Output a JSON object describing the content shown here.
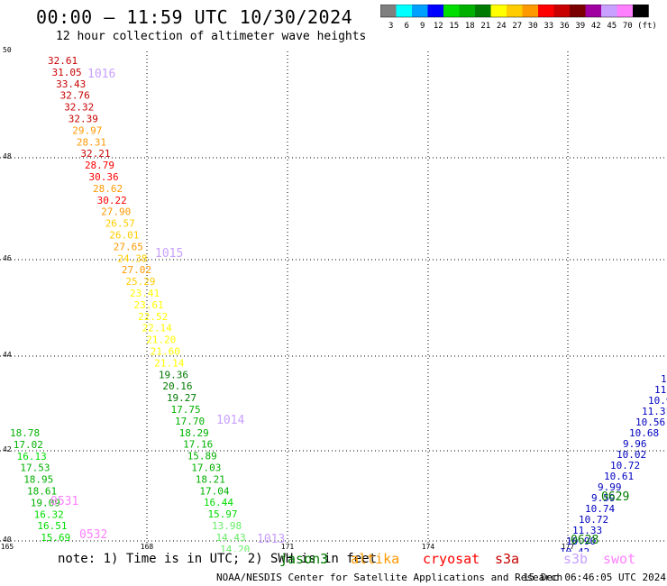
{
  "header": {
    "title": "00:00 – 11:59 UTC 10/30/2024",
    "subtitle": "12 hour collection of altimeter wave heights"
  },
  "color_scale": {
    "unit_label": "(ft)",
    "bins": [
      {
        "label": "3",
        "color": "#7f7f7f"
      },
      {
        "label": "6",
        "color": "#00ffff"
      },
      {
        "label": "9",
        "color": "#00a0ff"
      },
      {
        "label": "12",
        "color": "#0000ff"
      },
      {
        "label": "15",
        "color": "#00dd00"
      },
      {
        "label": "18",
        "color": "#00b000"
      },
      {
        "label": "21",
        "color": "#007a00"
      },
      {
        "label": "24",
        "color": "#ffff00"
      },
      {
        "label": "27",
        "color": "#ffcc00"
      },
      {
        "label": "30",
        "color": "#ff9900"
      },
      {
        "label": "33",
        "color": "#ff0000"
      },
      {
        "label": "36",
        "color": "#c80000"
      },
      {
        "label": "39",
        "color": "#7a0000"
      },
      {
        "label": "42",
        "color": "#a000a0"
      },
      {
        "label": "45",
        "color": "#c8a0ff"
      },
      {
        "label": "70",
        "color": "#ff80ff"
      },
      {
        "label": "",
        "color": "#000000"
      }
    ]
  },
  "map": {
    "lat_labels": [
      "50",
      "48",
      "46",
      "44",
      "42",
      "40"
    ],
    "lon_labels": [
      "165",
      "168",
      "171",
      "174",
      "177"
    ],
    "tracks": [
      {
        "color_group": "west",
        "values": [
          {
            "v": "32.61",
            "c": "#c80000"
          },
          {
            "v": "31.05",
            "c": "#c80000"
          },
          {
            "v": "33.43",
            "c": "#c80000"
          },
          {
            "v": "32.76",
            "c": "#c80000"
          },
          {
            "v": "32.32",
            "c": "#c80000"
          },
          {
            "v": "32.39",
            "c": "#c80000"
          },
          {
            "v": "29.97",
            "c": "#ff9900"
          },
          {
            "v": "28.31",
            "c": "#ff9900"
          },
          {
            "v": "32.21",
            "c": "#c80000"
          },
          {
            "v": "28.79",
            "c": "#ff0000"
          },
          {
            "v": "30.36",
            "c": "#ff0000"
          },
          {
            "v": "28.62",
            "c": "#ff9900"
          },
          {
            "v": "30.22",
            "c": "#ff0000"
          },
          {
            "v": "27.90",
            "c": "#ff9900"
          },
          {
            "v": "26.57",
            "c": "#ffcc00"
          },
          {
            "v": "26.01",
            "c": "#ffcc00"
          },
          {
            "v": "27.65",
            "c": "#ff9900"
          },
          {
            "v": "24.38",
            "c": "#ffcc00"
          },
          {
            "v": "27.02",
            "c": "#ff9900"
          },
          {
            "v": "25.29",
            "c": "#ffcc00"
          },
          {
            "v": "23.41",
            "c": "#ffff00"
          },
          {
            "v": "23.61",
            "c": "#ffff00"
          },
          {
            "v": "22.52",
            "c": "#ffff00"
          },
          {
            "v": "22.14",
            "c": "#ffff00"
          },
          {
            "v": "21.20",
            "c": "#ffff00"
          },
          {
            "v": "21.60",
            "c": "#ffff00"
          },
          {
            "v": "21.14",
            "c": "#ffff00"
          },
          {
            "v": "19.36",
            "c": "#007a00"
          },
          {
            "v": "20.16",
            "c": "#007a00"
          },
          {
            "v": "19.27",
            "c": "#007a00"
          },
          {
            "v": "17.75",
            "c": "#00b000"
          },
          {
            "v": "17.70",
            "c": "#00b000"
          },
          {
            "v": "18.29",
            "c": "#00b000"
          },
          {
            "v": "17.16",
            "c": "#00b000"
          },
          {
            "v": "15.89",
            "c": "#00b000"
          },
          {
            "v": "17.03",
            "c": "#00b000"
          },
          {
            "v": "18.21",
            "c": "#00b000"
          },
          {
            "v": "17.04",
            "c": "#00b000"
          },
          {
            "v": "16.44",
            "c": "#00dd00"
          },
          {
            "v": "15.97",
            "c": "#00dd00"
          },
          {
            "v": "13.98",
            "c": "#66ee66"
          },
          {
            "v": "14.43",
            "c": "#66ee66"
          },
          {
            "v": "14.20",
            "c": "#66ee66"
          }
        ]
      },
      {
        "color_group": "left-edge",
        "values": [
          {
            "v": "18.78",
            "c": "#00b000"
          },
          {
            "v": "17.02",
            "c": "#00b000"
          },
          {
            "v": "16.13",
            "c": "#00dd00"
          },
          {
            "v": "17.53",
            "c": "#00b000"
          },
          {
            "v": "18.95",
            "c": "#00b000"
          },
          {
            "v": "18.61",
            "c": "#00b000"
          },
          {
            "v": "19.09",
            "c": "#00b000"
          },
          {
            "v": "16.32",
            "c": "#00dd00"
          },
          {
            "v": "16.51",
            "c": "#00dd00"
          },
          {
            "v": "15.69",
            "c": "#00dd00"
          }
        ]
      },
      {
        "color_group": "east",
        "values": [
          {
            "v": "1",
            "c": "#0000c0"
          },
          {
            "v": "11.",
            "c": "#0000c0"
          },
          {
            "v": "10.9",
            "c": "#0000c0"
          },
          {
            "v": "11.31",
            "c": "#0000c0"
          },
          {
            "v": "10.56",
            "c": "#0000c0"
          },
          {
            "v": "10.68",
            "c": "#0000c0"
          },
          {
            "v": "9.96",
            "c": "#0000c0"
          },
          {
            "v": "10.02",
            "c": "#0000c0"
          },
          {
            "v": "10.72",
            "c": "#0000c0"
          },
          {
            "v": "10.61",
            "c": "#0000c0"
          },
          {
            "v": "9.99",
            "c": "#0000c0"
          },
          {
            "v": "9.59",
            "c": "#0000c0"
          },
          {
            "v": "10.74",
            "c": "#0000c0"
          },
          {
            "v": "10.72",
            "c": "#0000c0"
          },
          {
            "v": "11.33",
            "c": "#0000c0"
          },
          {
            "v": "10.90",
            "c": "#0000c0"
          },
          {
            "v": "10.42",
            "c": "#0000c0"
          },
          {
            "v": "10.70",
            "c": "#0000c0"
          },
          {
            "v": "10.46",
            "c": "#0000c0"
          },
          {
            "v": "11.10",
            "c": "#0000c0"
          }
        ]
      }
    ],
    "time_labels": [
      {
        "t": "1016",
        "c": "#c8a0ff"
      },
      {
        "t": "1015",
        "c": "#c8a0ff"
      },
      {
        "t": "1014",
        "c": "#c8a0ff"
      },
      {
        "t": "1013",
        "c": "#c8a0ff"
      },
      {
        "t": "0531",
        "c": "#ff80ff"
      },
      {
        "t": "0532",
        "c": "#ff80ff"
      },
      {
        "t": "0629",
        "c": "#007a00"
      },
      {
        "t": "0628",
        "c": "#007a00"
      }
    ]
  },
  "footer": {
    "note": "note: 1) Time is in UTC; 2) SWH is in feet",
    "satellites": [
      {
        "name": "jason3",
        "color": "#007a00"
      },
      {
        "name": "altika",
        "color": "#ff9900"
      },
      {
        "name": "cryosat",
        "color": "#ff0000"
      },
      {
        "name": "s3a",
        "color": "#c80000"
      },
      {
        "name": "s3b",
        "color": "#c8a0ff"
      },
      {
        "name": "swot",
        "color": "#ff80ff"
      }
    ],
    "credit": "NOAA/NESDIS Center for Satellite Applications and Research",
    "timestamp": "15 Dec 06:46:05 UTC 2024"
  }
}
